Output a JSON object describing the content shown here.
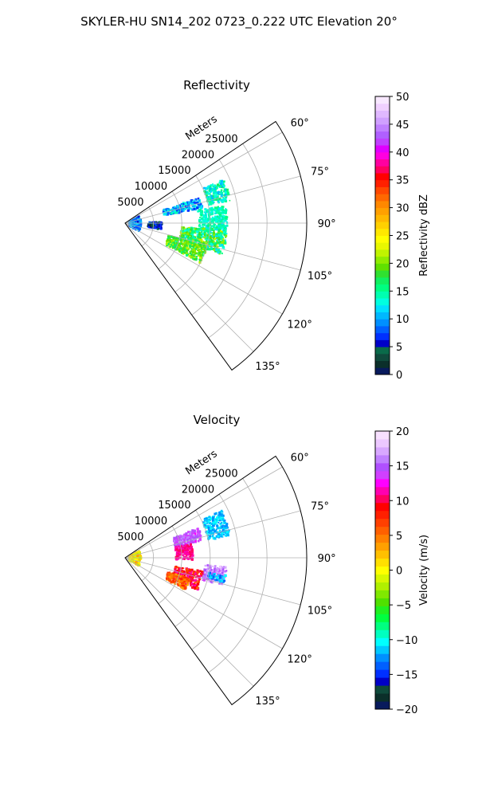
{
  "figure": {
    "title": "SKYLER-HU  SN14_202  0723_0.222 UTC Elevation 20°"
  },
  "chart_data": [
    {
      "type": "polar-sector",
      "title": "Reflectivity",
      "range_label": "Meters",
      "range_ticks": [
        5000,
        10000,
        15000,
        20000,
        25000
      ],
      "range_max": 32000,
      "azimuth_range": [
        56,
        144
      ],
      "azimuth_ticks": [
        60,
        75,
        90,
        105,
        120,
        135
      ],
      "azimuth_tick_labels": [
        "60°",
        "75°",
        "90°",
        "105°",
        "120°",
        "135°"
      ],
      "grid": true,
      "colorbar": {
        "label": "Reflectivity dBZ",
        "min": 0,
        "max": 50,
        "ticks": [
          0,
          5,
          10,
          15,
          20,
          25,
          30,
          35,
          40,
          45,
          50
        ],
        "tick_labels": [
          "0",
          "5",
          "10",
          "15",
          "20",
          "25",
          "30",
          "35",
          "40",
          "45",
          "50"
        ]
      },
      "echo_regions": [
        {
          "az_min": 66,
          "az_max": 78,
          "r_min": 15000,
          "r_max": 19000,
          "value_min": 10,
          "value_max": 17
        },
        {
          "az_min": 71,
          "az_max": 79,
          "r_min": 7000,
          "r_max": 14000,
          "value_min": 6,
          "value_max": 14
        },
        {
          "az_min": 80,
          "az_max": 95,
          "r_min": 13000,
          "r_max": 18000,
          "value_min": 12,
          "value_max": 16
        },
        {
          "az_min": 94,
          "az_max": 108,
          "r_min": 10000,
          "r_max": 18000,
          "value_min": 12,
          "value_max": 22
        },
        {
          "az_min": 106,
          "az_max": 118,
          "r_min": 8000,
          "r_max": 15000,
          "value_min": 16,
          "value_max": 22
        },
        {
          "az_min": 88,
          "az_max": 100,
          "r_min": 4000,
          "r_max": 6500,
          "value_min": 2,
          "value_max": 8
        },
        {
          "az_min": 62,
          "az_max": 120,
          "r_min": 800,
          "r_max": 2800,
          "value_min": 6,
          "value_max": 12
        }
      ]
    },
    {
      "type": "polar-sector",
      "title": "Velocity",
      "range_label": "Meters",
      "range_ticks": [
        5000,
        10000,
        15000,
        20000,
        25000
      ],
      "range_max": 32000,
      "azimuth_range": [
        56,
        144
      ],
      "azimuth_ticks": [
        60,
        75,
        90,
        105,
        120,
        135
      ],
      "azimuth_tick_labels": [
        "60°",
        "75°",
        "90°",
        "105°",
        "120°",
        "135°"
      ],
      "grid": true,
      "colorbar": {
        "label": "Velocity (m/s)",
        "min": -20,
        "max": 20,
        "ticks": [
          -20,
          -15,
          -10,
          -5,
          0,
          5,
          10,
          15,
          20
        ],
        "tick_labels": [
          "−20",
          "−15",
          "−10",
          "−5",
          "0",
          "5",
          "10",
          "15",
          "20"
        ]
      },
      "echo_regions": [
        {
          "az_min": 64,
          "az_max": 78,
          "r_min": 15000,
          "r_max": 19000,
          "value_min": -13,
          "value_max": -10
        },
        {
          "az_min": 68,
          "az_max": 78,
          "r_min": 9000,
          "r_max": 14000,
          "value_min": 13,
          "value_max": 16
        },
        {
          "az_min": 78,
          "az_max": 92,
          "r_min": 9000,
          "r_max": 12000,
          "value_min": 10,
          "value_max": 12
        },
        {
          "az_min": 95,
          "az_max": 106,
          "r_min": 14000,
          "r_max": 18000,
          "value_min": 14,
          "value_max": 18
        },
        {
          "az_min": 100,
          "az_max": 104,
          "r_min": 15000,
          "r_max": 18000,
          "value_min": -14,
          "value_max": -10
        },
        {
          "az_min": 100,
          "az_max": 114,
          "r_min": 9000,
          "r_max": 14000,
          "value_min": 6,
          "value_max": 12
        },
        {
          "az_min": 108,
          "az_max": 118,
          "r_min": 8000,
          "r_max": 12000,
          "value_min": 3,
          "value_max": 8
        },
        {
          "az_min": 62,
          "az_max": 120,
          "r_min": 800,
          "r_max": 2800,
          "value_min": -2,
          "value_max": 4
        }
      ]
    }
  ],
  "colors": {
    "grid": "#b0b0b0",
    "axis": "#000000"
  }
}
